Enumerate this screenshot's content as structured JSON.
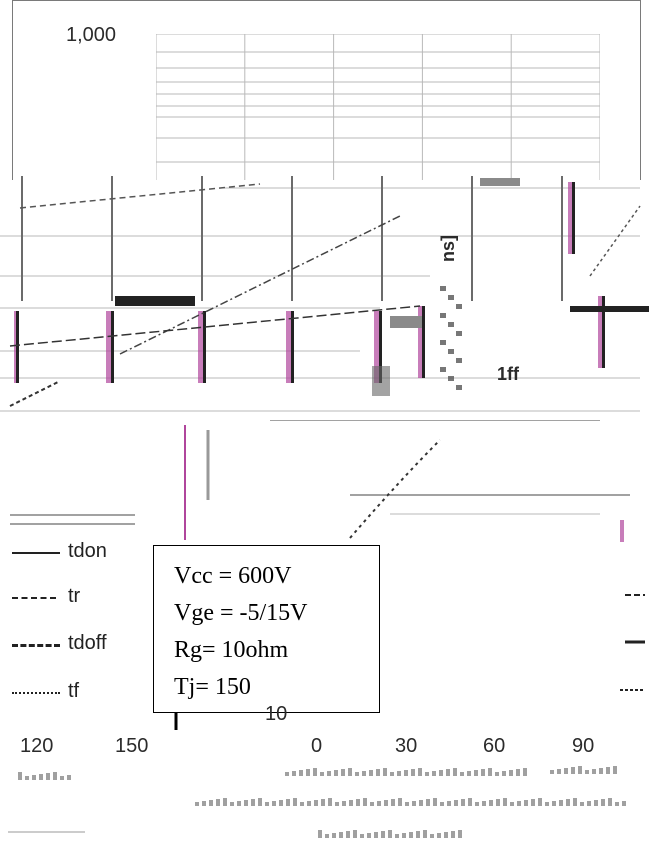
{
  "chart_data": {
    "type": "line",
    "yscale": "log",
    "y_tick_labels": [
      "1,000",
      "10"
    ],
    "x_tick_labels": [
      "120",
      "150",
      "0",
      "30",
      "60",
      "90"
    ],
    "grid": true,
    "legend_position": "left",
    "series": [
      {
        "name": "tdon"
      },
      {
        "name": "tr"
      },
      {
        "name": "tdoff"
      },
      {
        "name": "tf"
      }
    ],
    "annotation": [
      "Vcc = 600V",
      "Vge = -5/15V",
      "Rg= 10ohm",
      "Tj= 150"
    ],
    "ylabel_fragment": "ns]",
    "label_fragment": "1ff"
  },
  "colors": {
    "frame": "#7a7a7a",
    "grid": "#b9b9b9",
    "ink": "#1a1a1a",
    "glitch_magenta": "#b0469c",
    "glitch_gray": "#8a8a8a"
  }
}
